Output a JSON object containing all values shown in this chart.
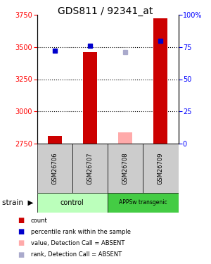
{
  "title": "GDS811 / 92341_at",
  "samples": [
    "GSM26706",
    "GSM26707",
    "GSM26708",
    "GSM26709"
  ],
  "ylim_left": [
    2750,
    3750
  ],
  "ylim_right": [
    0,
    100
  ],
  "yticks_left": [
    2750,
    3000,
    3250,
    3500,
    3750
  ],
  "yticks_right": [
    0,
    25,
    50,
    75,
    100
  ],
  "ytick_labels_right": [
    "0",
    "25",
    "50",
    "75",
    "100%"
  ],
  "red_bars": [
    2810,
    3460,
    null,
    3720
  ],
  "pink_bars": [
    null,
    null,
    2840,
    null
  ],
  "blue_squares": [
    3470,
    3510,
    null,
    3545
  ],
  "lavender_squares": [
    null,
    null,
    3460,
    null
  ],
  "bar_width": 0.4,
  "red_color": "#cc0000",
  "pink_color": "#ffaaaa",
  "blue_color": "#0000cc",
  "lavender_color": "#aaaacc",
  "sample_bg": "#cccccc",
  "ctrl_color": "#bbffbb",
  "apps_color": "#44cc44",
  "title_fontsize": 10,
  "tick_fontsize": 7,
  "legend_items": [
    [
      "#cc0000",
      "count"
    ],
    [
      "#0000cc",
      "percentile rank within the sample"
    ],
    [
      "#ffaaaa",
      "value, Detection Call = ABSENT"
    ],
    [
      "#aaaacc",
      "rank, Detection Call = ABSENT"
    ]
  ]
}
